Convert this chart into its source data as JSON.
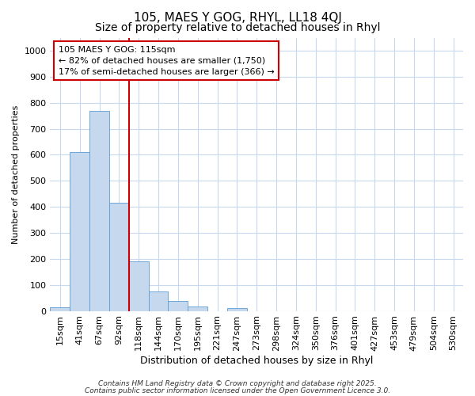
{
  "title1": "105, MAES Y GOG, RHYL, LL18 4QJ",
  "title2": "Size of property relative to detached houses in Rhyl",
  "xlabel": "Distribution of detached houses by size in Rhyl",
  "ylabel": "Number of detached properties",
  "categories": [
    "15sqm",
    "41sqm",
    "67sqm",
    "92sqm",
    "118sqm",
    "144sqm",
    "170sqm",
    "195sqm",
    "221sqm",
    "247sqm",
    "273sqm",
    "298sqm",
    "324sqm",
    "350sqm",
    "376sqm",
    "401sqm",
    "427sqm",
    "453sqm",
    "479sqm",
    "504sqm",
    "530sqm"
  ],
  "values": [
    15,
    610,
    770,
    415,
    190,
    75,
    38,
    18,
    0,
    12,
    0,
    0,
    0,
    0,
    0,
    0,
    0,
    0,
    0,
    0,
    0
  ],
  "bar_color": "#c5d8ee",
  "bar_edge_color": "#5b9bd5",
  "vline_color": "#cc0000",
  "vline_x": 3.5,
  "ylim": [
    0,
    1050
  ],
  "yticks": [
    0,
    100,
    200,
    300,
    400,
    500,
    600,
    700,
    800,
    900,
    1000
  ],
  "annotation_text": "105 MAES Y GOG: 115sqm\n← 82% of detached houses are smaller (1,750)\n17% of semi-detached houses are larger (366) →",
  "annotation_box_facecolor": "#ffffff",
  "annotation_box_edgecolor": "#cc0000",
  "footer1": "Contains HM Land Registry data © Crown copyright and database right 2025.",
  "footer2": "Contains public sector information licensed under the Open Government Licence 3.0.",
  "bg_color": "#ffffff",
  "grid_color": "#c8d8f0",
  "title1_fontsize": 11,
  "title2_fontsize": 10,
  "xlabel_fontsize": 9,
  "ylabel_fontsize": 8,
  "tick_fontsize": 8,
  "ann_fontsize": 8,
  "footer_fontsize": 6.5
}
